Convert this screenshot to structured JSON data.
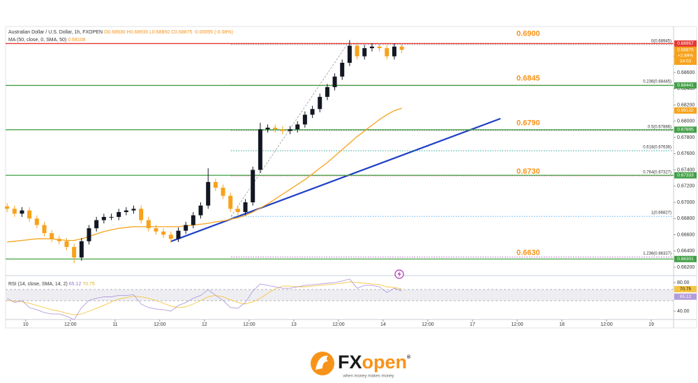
{
  "chart_data": {
    "type": "candlestick",
    "title": "Australian Dollar / U.S. Dollar, 1h, FXOPEN",
    "ohlc_labels": [
      "O0.68930",
      "H0.68933",
      "L0.68850",
      "C0.68875",
      "-0.00055 (-0.08%)"
    ],
    "up_color": "#131722",
    "down_color": "#f7a21b",
    "xlim": [
      -5.4,
      174
    ],
    "ylim": [
      0.6614,
      0.6915
    ],
    "xticks": [
      {
        "value": 0,
        "label": "10"
      },
      {
        "value": 12,
        "label": "12:00"
      },
      {
        "value": 24,
        "label": "11"
      },
      {
        "value": 36,
        "label": "12:00"
      },
      {
        "value": 48,
        "label": "12"
      },
      {
        "value": 60,
        "label": "12:00"
      },
      {
        "value": 72,
        "label": "13"
      },
      {
        "value": 84,
        "label": "12:00"
      },
      {
        "value": 96,
        "label": "14"
      },
      {
        "value": 108,
        "label": "12:00"
      },
      {
        "value": 120,
        "label": "17"
      },
      {
        "value": 132,
        "label": "12:00"
      },
      {
        "value": 144,
        "label": "18"
      },
      {
        "value": 156,
        "label": "12:00"
      },
      {
        "value": 168,
        "label": "19"
      }
    ],
    "yticks": [
      {
        "value": 0.662,
        "label": "0.66200"
      },
      {
        "value": 0.664,
        "label": "0.66400"
      },
      {
        "value": 0.666,
        "label": "0.66600"
      },
      {
        "value": 0.668,
        "label": "0.66800"
      },
      {
        "value": 0.67,
        "label": "0.67000"
      },
      {
        "value": 0.672,
        "label": "0.67200"
      },
      {
        "value": 0.674,
        "label": "0.67400"
      },
      {
        "value": 0.676,
        "label": "0.67600"
      },
      {
        "value": 0.678,
        "label": "0.67800"
      },
      {
        "value": 0.68,
        "label": "0.68000"
      },
      {
        "value": 0.682,
        "label": "0.68200"
      },
      {
        "value": 0.684,
        "label": "0.68400"
      },
      {
        "value": 0.686,
        "label": "0.68600"
      },
      {
        "value": 0.688,
        "label": "0.68800"
      }
    ],
    "x": [
      -5,
      -3,
      -1,
      1,
      3,
      5,
      7,
      9,
      11,
      13,
      15,
      17,
      19,
      21,
      23,
      25,
      27,
      29,
      31,
      33,
      35,
      37,
      39,
      41,
      43,
      45,
      47,
      49,
      51,
      53,
      55,
      57,
      59,
      61,
      63,
      65,
      67,
      69,
      71,
      73,
      75,
      77,
      79,
      81,
      83,
      85,
      87,
      89,
      91,
      93,
      95,
      97,
      99,
      101
    ],
    "open": [
      0.6695,
      0.6692,
      0.6686,
      0.669,
      0.668,
      0.6672,
      0.6662,
      0.6655,
      0.6652,
      0.6645,
      0.6632,
      0.6652,
      0.6668,
      0.6678,
      0.6682,
      0.6682,
      0.6688,
      0.669,
      0.6692,
      0.6678,
      0.6668,
      0.6664,
      0.666,
      0.6655,
      0.6665,
      0.6672,
      0.6684,
      0.6696,
      0.6725,
      0.6718,
      0.6708,
      0.6692,
      0.6688,
      0.67,
      0.674,
      0.679,
      0.6792,
      0.679,
      0.6788,
      0.679,
      0.6796,
      0.6808,
      0.6815,
      0.683,
      0.6842,
      0.6855,
      0.6872,
      0.6893,
      0.688,
      0.689,
      0.6892,
      0.689,
      0.688,
      0.6892
    ],
    "high": [
      0.6699,
      0.6696,
      0.6694,
      0.6694,
      0.6684,
      0.6676,
      0.6666,
      0.6659,
      0.6656,
      0.6649,
      0.6656,
      0.6672,
      0.6682,
      0.6686,
      0.6686,
      0.6692,
      0.6694,
      0.6696,
      0.6696,
      0.6682,
      0.6672,
      0.6668,
      0.6664,
      0.6669,
      0.6676,
      0.6688,
      0.67,
      0.6742,
      0.6729,
      0.6722,
      0.6712,
      0.6696,
      0.6704,
      0.6744,
      0.6798,
      0.6796,
      0.6796,
      0.6794,
      0.6794,
      0.68,
      0.6812,
      0.6819,
      0.6834,
      0.6846,
      0.6859,
      0.6876,
      0.69,
      0.6897,
      0.6894,
      0.6896,
      0.6896,
      0.6894,
      0.6896,
      0.6896
    ],
    "low": [
      0.6688,
      0.6682,
      0.6682,
      0.6676,
      0.6668,
      0.6658,
      0.6651,
      0.6648,
      0.6641,
      0.6625,
      0.6628,
      0.6648,
      0.6664,
      0.6674,
      0.6678,
      0.6678,
      0.6684,
      0.6686,
      0.6674,
      0.6664,
      0.666,
      0.6656,
      0.665,
      0.6651,
      0.6661,
      0.6668,
      0.668,
      0.6692,
      0.6714,
      0.6704,
      0.6688,
      0.6684,
      0.6684,
      0.6696,
      0.6736,
      0.6786,
      0.6786,
      0.6784,
      0.6784,
      0.6786,
      0.6792,
      0.6804,
      0.6811,
      0.6826,
      0.6838,
      0.6851,
      0.6868,
      0.6876,
      0.6876,
      0.6886,
      0.6886,
      0.6876,
      0.6876,
      0.6884
    ],
    "close": [
      0.6692,
      0.6686,
      0.669,
      0.668,
      0.6672,
      0.6662,
      0.6655,
      0.6652,
      0.6645,
      0.6632,
      0.6652,
      0.6668,
      0.6678,
      0.6682,
      0.6682,
      0.6688,
      0.669,
      0.6692,
      0.6678,
      0.6668,
      0.6664,
      0.666,
      0.6655,
      0.6665,
      0.6672,
      0.6684,
      0.6696,
      0.6725,
      0.6718,
      0.6708,
      0.6692,
      0.6688,
      0.67,
      0.674,
      0.679,
      0.6792,
      0.679,
      0.6788,
      0.679,
      0.6796,
      0.6808,
      0.6815,
      0.683,
      0.6842,
      0.6855,
      0.6872,
      0.6893,
      0.688,
      0.689,
      0.6892,
      0.689,
      0.688,
      0.6892,
      0.6888
    ],
    "ma": {
      "name": "MA (50, close, 0, SMA, 50)",
      "value_label": "0.68108",
      "tag": 0.68132,
      "color": "#f7a21b",
      "values": [
        0.6651,
        0.6652,
        0.6653,
        0.6654,
        0.6655,
        0.6655,
        0.6655,
        0.6654,
        0.6653,
        0.6653,
        0.6655,
        0.6658,
        0.6661,
        0.6664,
        0.6666,
        0.6668,
        0.6669,
        0.667,
        0.667,
        0.667,
        0.667,
        0.667,
        0.667,
        0.667,
        0.6671,
        0.6672,
        0.6673,
        0.6674,
        0.6676,
        0.6677,
        0.6679,
        0.6681,
        0.6684,
        0.6688,
        0.6693,
        0.6698,
        0.6704,
        0.671,
        0.6716,
        0.6722,
        0.6728,
        0.6735,
        0.6742,
        0.6749,
        0.6757,
        0.6765,
        0.6773,
        0.6781,
        0.6788,
        0.6795,
        0.6802,
        0.6808,
        0.6813,
        0.6816
      ]
    },
    "price_tag": {
      "price": 0.68875,
      "change": "+2.89%",
      "countdown": "34:03",
      "color": "#f7a21b"
    },
    "levels": [
      {
        "label": {
          "value": 0.69,
          "label": "0.6900"
        },
        "tag": 0.68957,
        "color": "#e53935"
      },
      {
        "label": {
          "value": 0.6845,
          "label": "0.6845"
        },
        "tag": 0.68441,
        "color": "#43a047"
      },
      {
        "label": {
          "value": 0.679,
          "label": "0.6790"
        },
        "tag": 0.67895,
        "color": "#43a047"
      },
      {
        "label": {
          "value": 0.673,
          "label": "0.6730"
        },
        "tag": 0.67333,
        "color": "#43a047"
      },
      {
        "label": {
          "value": 0.663,
          "label": "0.6630"
        },
        "tag": 0.66301,
        "color": "#43a047"
      }
    ],
    "fib": [
      {
        "value": 0.68945,
        "label": "0(0.68945)",
        "color": "#787b86"
      },
      {
        "value": 0.68445,
        "label": "0.236(0.68445)",
        "color": "#f23645"
      },
      {
        "value": 0.67886,
        "label": "0.5(0.67886)",
        "color": "#4c525e"
      },
      {
        "value": 0.67636,
        "label": "0.618(0.67636)",
        "color": "#089981"
      },
      {
        "value": 0.67327,
        "label": "0.764(0.67327)",
        "color": "#b71c1c"
      },
      {
        "value": 0.66827,
        "label": "1(0.66827)",
        "color": "#2196f3"
      },
      {
        "value": 0.66327,
        "label": "1.236(0.66327)",
        "color": "#9c27b0"
      }
    ],
    "rsi": {
      "title": "RSI (14, close, SMA, 14, 2)",
      "value": 65.12,
      "sma_value": 70.75,
      "color": "#b39ddb",
      "sma_color": "#f5c542",
      "ylim": [
        28.3,
        86.8
      ],
      "yticks": [
        {
          "value": 40,
          "label": "40.00"
        },
        {
          "value": 80,
          "label": "80.00"
        }
      ],
      "values": [
        58,
        52,
        55,
        45,
        42,
        38,
        36,
        36,
        33,
        28,
        45,
        55,
        58,
        60,
        60,
        62,
        62,
        63,
        50,
        45,
        43,
        42,
        40,
        48,
        52,
        58,
        62,
        70,
        62,
        55,
        45,
        44,
        52,
        68,
        78,
        76,
        74,
        72,
        72,
        74,
        76,
        77,
        78,
        79,
        80,
        82,
        85,
        72,
        76,
        76,
        74,
        66,
        72,
        68
      ],
      "sma_values": [
        55,
        54,
        53,
        51,
        48,
        45,
        42,
        40,
        37,
        35,
        36,
        40,
        44,
        48,
        53,
        57,
        59,
        61,
        60,
        58,
        55,
        51,
        47,
        45,
        46,
        50,
        55,
        60,
        62,
        60,
        56,
        52,
        50,
        53,
        58,
        65,
        71,
        75,
        75,
        74,
        74,
        75,
        76,
        77,
        78,
        79,
        81,
        80,
        79,
        78,
        77,
        74,
        73,
        71
      ]
    }
  },
  "brand": {
    "first": "FX",
    "second": "open",
    "mark": "®",
    "tagline": "when money makes money"
  }
}
